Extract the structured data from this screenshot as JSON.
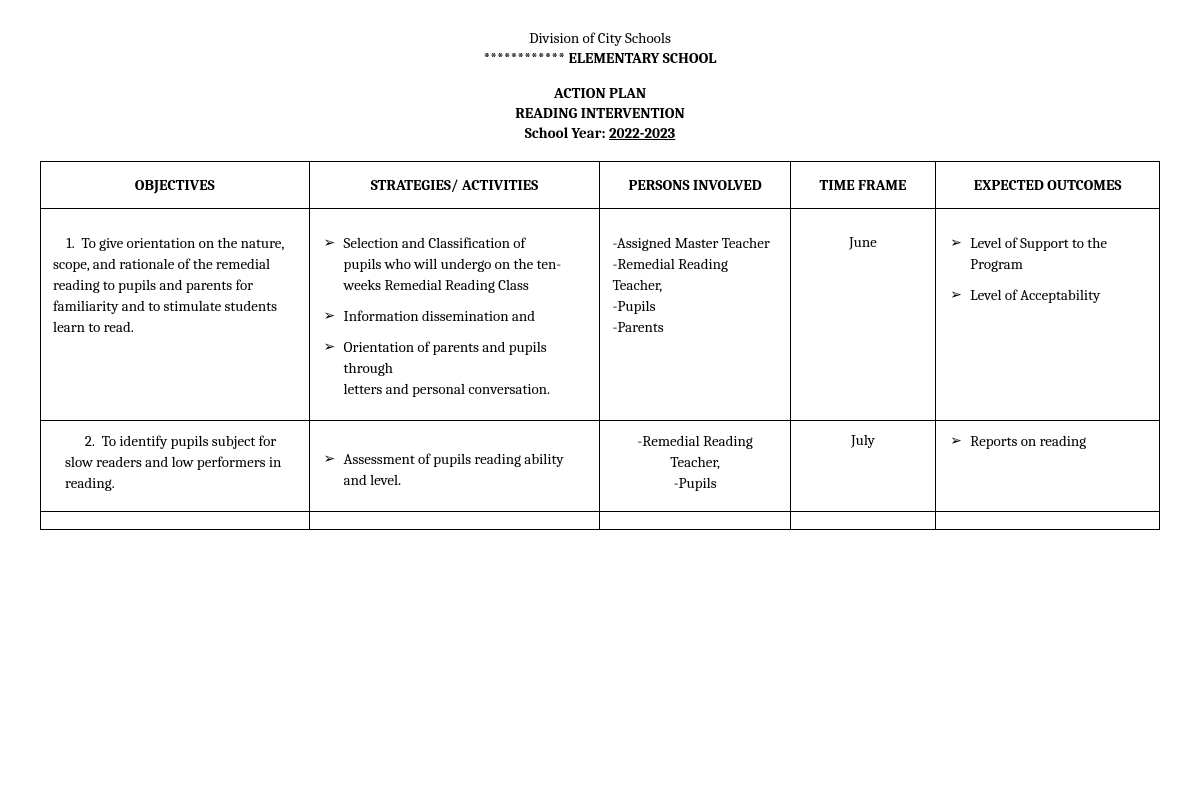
{
  "header": {
    "division": "Division of City Schools",
    "school_prefix": "************",
    "school_name": "ELEMENTARY SCHOOL",
    "title1": "ACTION PLAN",
    "title2": "READING INTERVENTION",
    "sy_label": "School Year:",
    "sy_value": "2022-2023"
  },
  "columns": {
    "objectives": "OBJECTIVES",
    "strategies": "STRATEGIES/ ACTIVITIES",
    "persons": "PERSONS INVOLVED",
    "time": "TIME FRAME",
    "outcomes": "EXPECTED OUTCOMES"
  },
  "rows": [
    {
      "objective_num": "1.",
      "objective_text": "To give orientation on the nature, scope, and rationale of the remedial reading to pupils and parents for familiarity and to stimulate students learn to read.",
      "strategies": [
        {
          "lead": "Selection and Classification of",
          "cont": "pupils who will undergo on the ten-\nweeks Remedial Reading Class"
        },
        {
          "lead": "Information dissemination and",
          "cont": ""
        },
        {
          "lead": "Orientation of parents and pupils through",
          "cont": "letters and personal conversation."
        }
      ],
      "persons": "-Assigned Master Teacher\n-Remedial Reading Teacher,\n-Pupils\n-Parents",
      "time": "June",
      "outcomes": [
        "Level of Support to the Program",
        "Level of Acceptability"
      ]
    },
    {
      "objective_num": "2.",
      "objective_text": "To identify pupils subject for slow readers and low performers in reading.",
      "strategies": [
        {
          "lead": "Assessment of pupils reading ability and level.",
          "cont": ""
        }
      ],
      "persons": "-Remedial Reading Teacher,\n-Pupils",
      "time": "July",
      "outcomes": [
        "Reports on reading"
      ]
    }
  ],
  "style": {
    "bg": "#ffffff",
    "fg": "#000000",
    "border": "#000000",
    "font_size_pt": 11,
    "bullet_glyph": "➢"
  }
}
